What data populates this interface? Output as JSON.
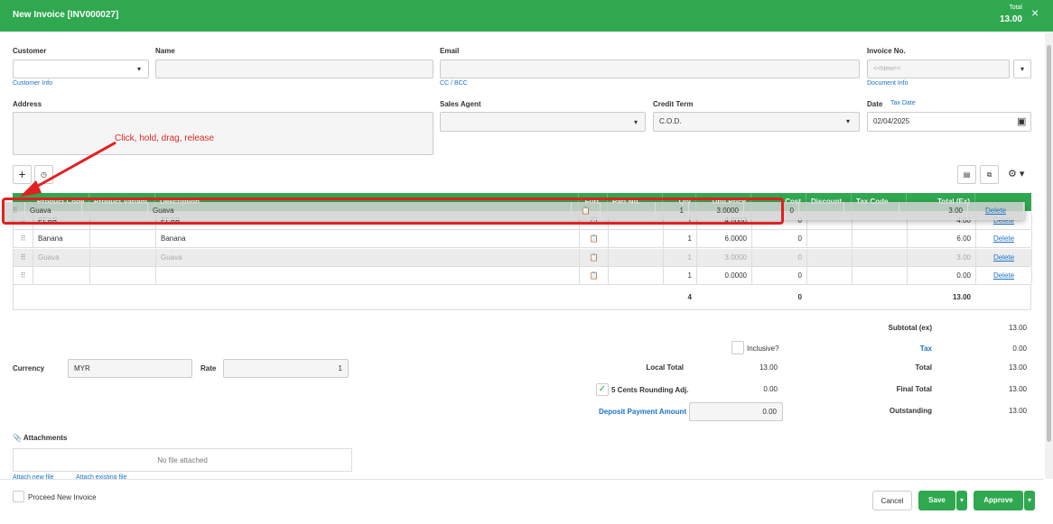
{
  "header": {
    "title": "New Invoice [INV000027]",
    "total_label": "Total",
    "total_value": "13.00"
  },
  "form": {
    "customer_label": "Customer",
    "name_label": "Name",
    "email_label": "Email",
    "invoice_no_label": "Invoice No.",
    "invoice_no_placeholder": "<<New>>",
    "customer_info_link": "Customer Info",
    "cc_bcc_link": "CC / BCC",
    "document_info_link": "Document Info",
    "address_label": "Address",
    "sales_agent_label": "Sales Agent",
    "credit_term_label": "Credit Term",
    "credit_term_value": "C.O.D.",
    "date_label": "Date",
    "tax_date_link": "Tax Date",
    "date_value": "02/04/2025"
  },
  "annotation": "Click, hold, drag, release",
  "table": {
    "columns": [
      "Product Code",
      "Product Variant",
      "Description",
      "Furt.",
      "Part No.",
      "Qty",
      "Unit Price",
      "Cost",
      "Discount",
      "Tax Code",
      "Total (Ex)"
    ],
    "dragged_row": {
      "code": "Guava",
      "description": "Guava",
      "qty": "1",
      "unit_price": "3.0000",
      "cost": "0",
      "total": "3.00",
      "action": "Delete"
    },
    "rows": [
      {
        "code": "PEAR",
        "description": "PEAR",
        "qty": "1",
        "unit_price": "4.0000",
        "cost": "0",
        "total": "4.00",
        "action": "Delete"
      },
      {
        "code": "Banana",
        "description": "Banana",
        "qty": "1",
        "unit_price": "6.0000",
        "cost": "0",
        "total": "6.00",
        "action": "Delete"
      },
      {
        "code": "Guava",
        "description": "Guava",
        "qty": "1",
        "unit_price": "3.0000",
        "cost": "0",
        "total": "3.00",
        "action": "Delete"
      },
      {
        "qty": "1",
        "unit_price": "0.0000",
        "cost": "0",
        "total": "0.00",
        "action": "Delete"
      }
    ],
    "totals": {
      "qty": "4",
      "cost": "0",
      "total": "13.00"
    }
  },
  "summary": {
    "subtotal_label": "Subtotal (ex)",
    "subtotal_value": "13.00",
    "inclusive_label": "Inclusive?",
    "tax_label": "Tax",
    "tax_value": "0.00",
    "currency_label": "Currency",
    "currency_value": "MYR",
    "rate_label": "Rate",
    "rate_value": "1",
    "local_total_label": "Local Total",
    "local_total_value": "13.00",
    "total_label": "Total",
    "total_value": "13.00",
    "rounding_label": "5 Cents Rounding Adj.",
    "rounding_value": "0.00",
    "final_total_label": "Final Total",
    "final_total_value": "13.00",
    "deposit_label": "Deposit Payment Amount",
    "deposit_value": "0.00",
    "outstanding_label": "Outstanding",
    "outstanding_value": "13.00"
  },
  "attachments": {
    "title": "Attachments",
    "empty_text": "No file attached",
    "attach_new_link": "Attach new file",
    "attach_existing_link": "Attach existing file"
  },
  "footer": {
    "proceed_label": "Proceed New Invoice",
    "cancel_button": "Cancel",
    "save_button": "Save",
    "approve_button": "Approve"
  }
}
